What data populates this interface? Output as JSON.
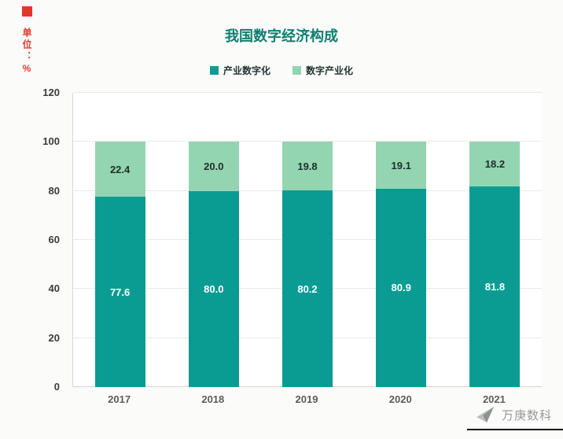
{
  "unit_label": "单位：%",
  "colors": {
    "marker_red": "#e2382a",
    "title": "#0c7f6f"
  },
  "watermark": {
    "text": "万庚数科"
  },
  "chart_data": {
    "type": "bar",
    "stacked": true,
    "title": "我国数字经济构成",
    "categories": [
      "2017",
      "2018",
      "2019",
      "2020",
      "2021"
    ],
    "series": [
      {
        "name": "产业数字化",
        "color": "#0a9c92",
        "label_color": "#ffffff",
        "values": [
          77.6,
          80.0,
          80.2,
          80.9,
          81.8
        ]
      },
      {
        "name": "数字产业化",
        "color": "#93d5b0",
        "label_color": "#1f2d2a",
        "values": [
          22.4,
          20.0,
          19.8,
          19.1,
          18.2
        ]
      }
    ],
    "ylabel": "单位：%",
    "xlabel": "",
    "ylim": [
      0,
      120
    ],
    "yticks": [
      0,
      20,
      40,
      60,
      80,
      100,
      120
    ],
    "legend_position": "top",
    "grid": true
  }
}
